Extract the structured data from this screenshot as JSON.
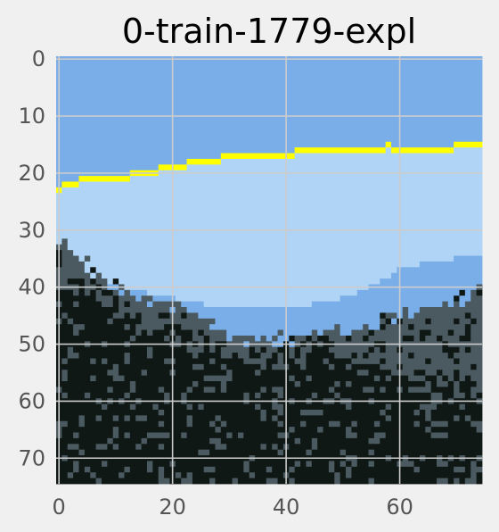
{
  "chart_data": {
    "type": "heatmap",
    "title": "0-train-1779-expl",
    "xlabel": "",
    "ylabel": "",
    "image_size": [
      75,
      75
    ],
    "xlim": [
      0,
      74
    ],
    "ylim": [
      74,
      0
    ],
    "xticks": [
      0,
      20,
      40,
      60
    ],
    "yticks": [
      0,
      10,
      20,
      30,
      40,
      50,
      60,
      70
    ],
    "grid": true,
    "palette": {
      "sky": "#7aaee8",
      "light": "#b0d4f5",
      "grey": "#4a5a60",
      "dark": "#0f1815",
      "boundary": "#ffff00"
    },
    "regions": {
      "boundary_line_x": [
        0,
        2,
        5,
        10,
        15,
        20,
        26,
        31,
        38,
        45,
        50,
        58,
        60,
        65,
        70,
        74
      ],
      "boundary_line_y": [
        23,
        22,
        21,
        21,
        20,
        19,
        18,
        17,
        17,
        16,
        16,
        15.5,
        16,
        16,
        15.5,
        15.5
      ],
      "blue_band_top_x": [
        0,
        10,
        20,
        25,
        30,
        35,
        40,
        45,
        50,
        55,
        60,
        65,
        70,
        74
      ],
      "blue_band_top_y": [
        39,
        40,
        42,
        43,
        44,
        44,
        44,
        43,
        42,
        40,
        37,
        35.5,
        35,
        35
      ],
      "grey_top_x": [
        0,
        5,
        10,
        15,
        20,
        25,
        30,
        35,
        40,
        45,
        50,
        55,
        60,
        65,
        70,
        74
      ],
      "grey_top_y": [
        32,
        36,
        40,
        42,
        43,
        45.5,
        48.5,
        50,
        49,
        48,
        47.5,
        47,
        45,
        44,
        42,
        41
      ],
      "dark_top_x": [
        0,
        5,
        10,
        15,
        20,
        25,
        30,
        35,
        40,
        45,
        50,
        55,
        60,
        65,
        70,
        74
      ],
      "dark_top_y": [
        40,
        41,
        44,
        47,
        48,
        50,
        52,
        54,
        51,
        51,
        52,
        55,
        56,
        56.5,
        58,
        58
      ]
    }
  }
}
